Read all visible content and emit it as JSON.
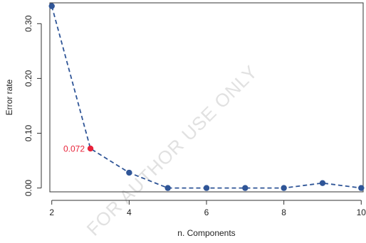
{
  "chart_data": {
    "type": "line",
    "xlabel": "n. Components",
    "ylabel": "Error rate",
    "xlim": [
      1.95,
      10.05
    ],
    "ylim": [
      -0.007,
      0.338
    ],
    "x_ticks": [
      2,
      4,
      6,
      8,
      10
    ],
    "y_ticks": [
      0.0,
      0.1,
      0.2,
      0.3
    ],
    "y_tick_labels": [
      "0.00",
      "0.10",
      "0.20",
      "0.30"
    ],
    "grid": false,
    "series": [
      {
        "x": [
          2,
          3,
          4,
          5,
          6,
          7,
          8,
          9,
          10
        ],
        "values": [
          0.332,
          0.072,
          0.028,
          0.0,
          0.0,
          0.0,
          0.0,
          0.009,
          0.0
        ]
      }
    ],
    "highlight": {
      "x": 3,
      "value": 0.072,
      "label": "0.072"
    },
    "colors": {
      "series": "#2f5597",
      "highlight": "#e8233a"
    }
  },
  "watermark": "FOR AUTHOR USE ONLY"
}
